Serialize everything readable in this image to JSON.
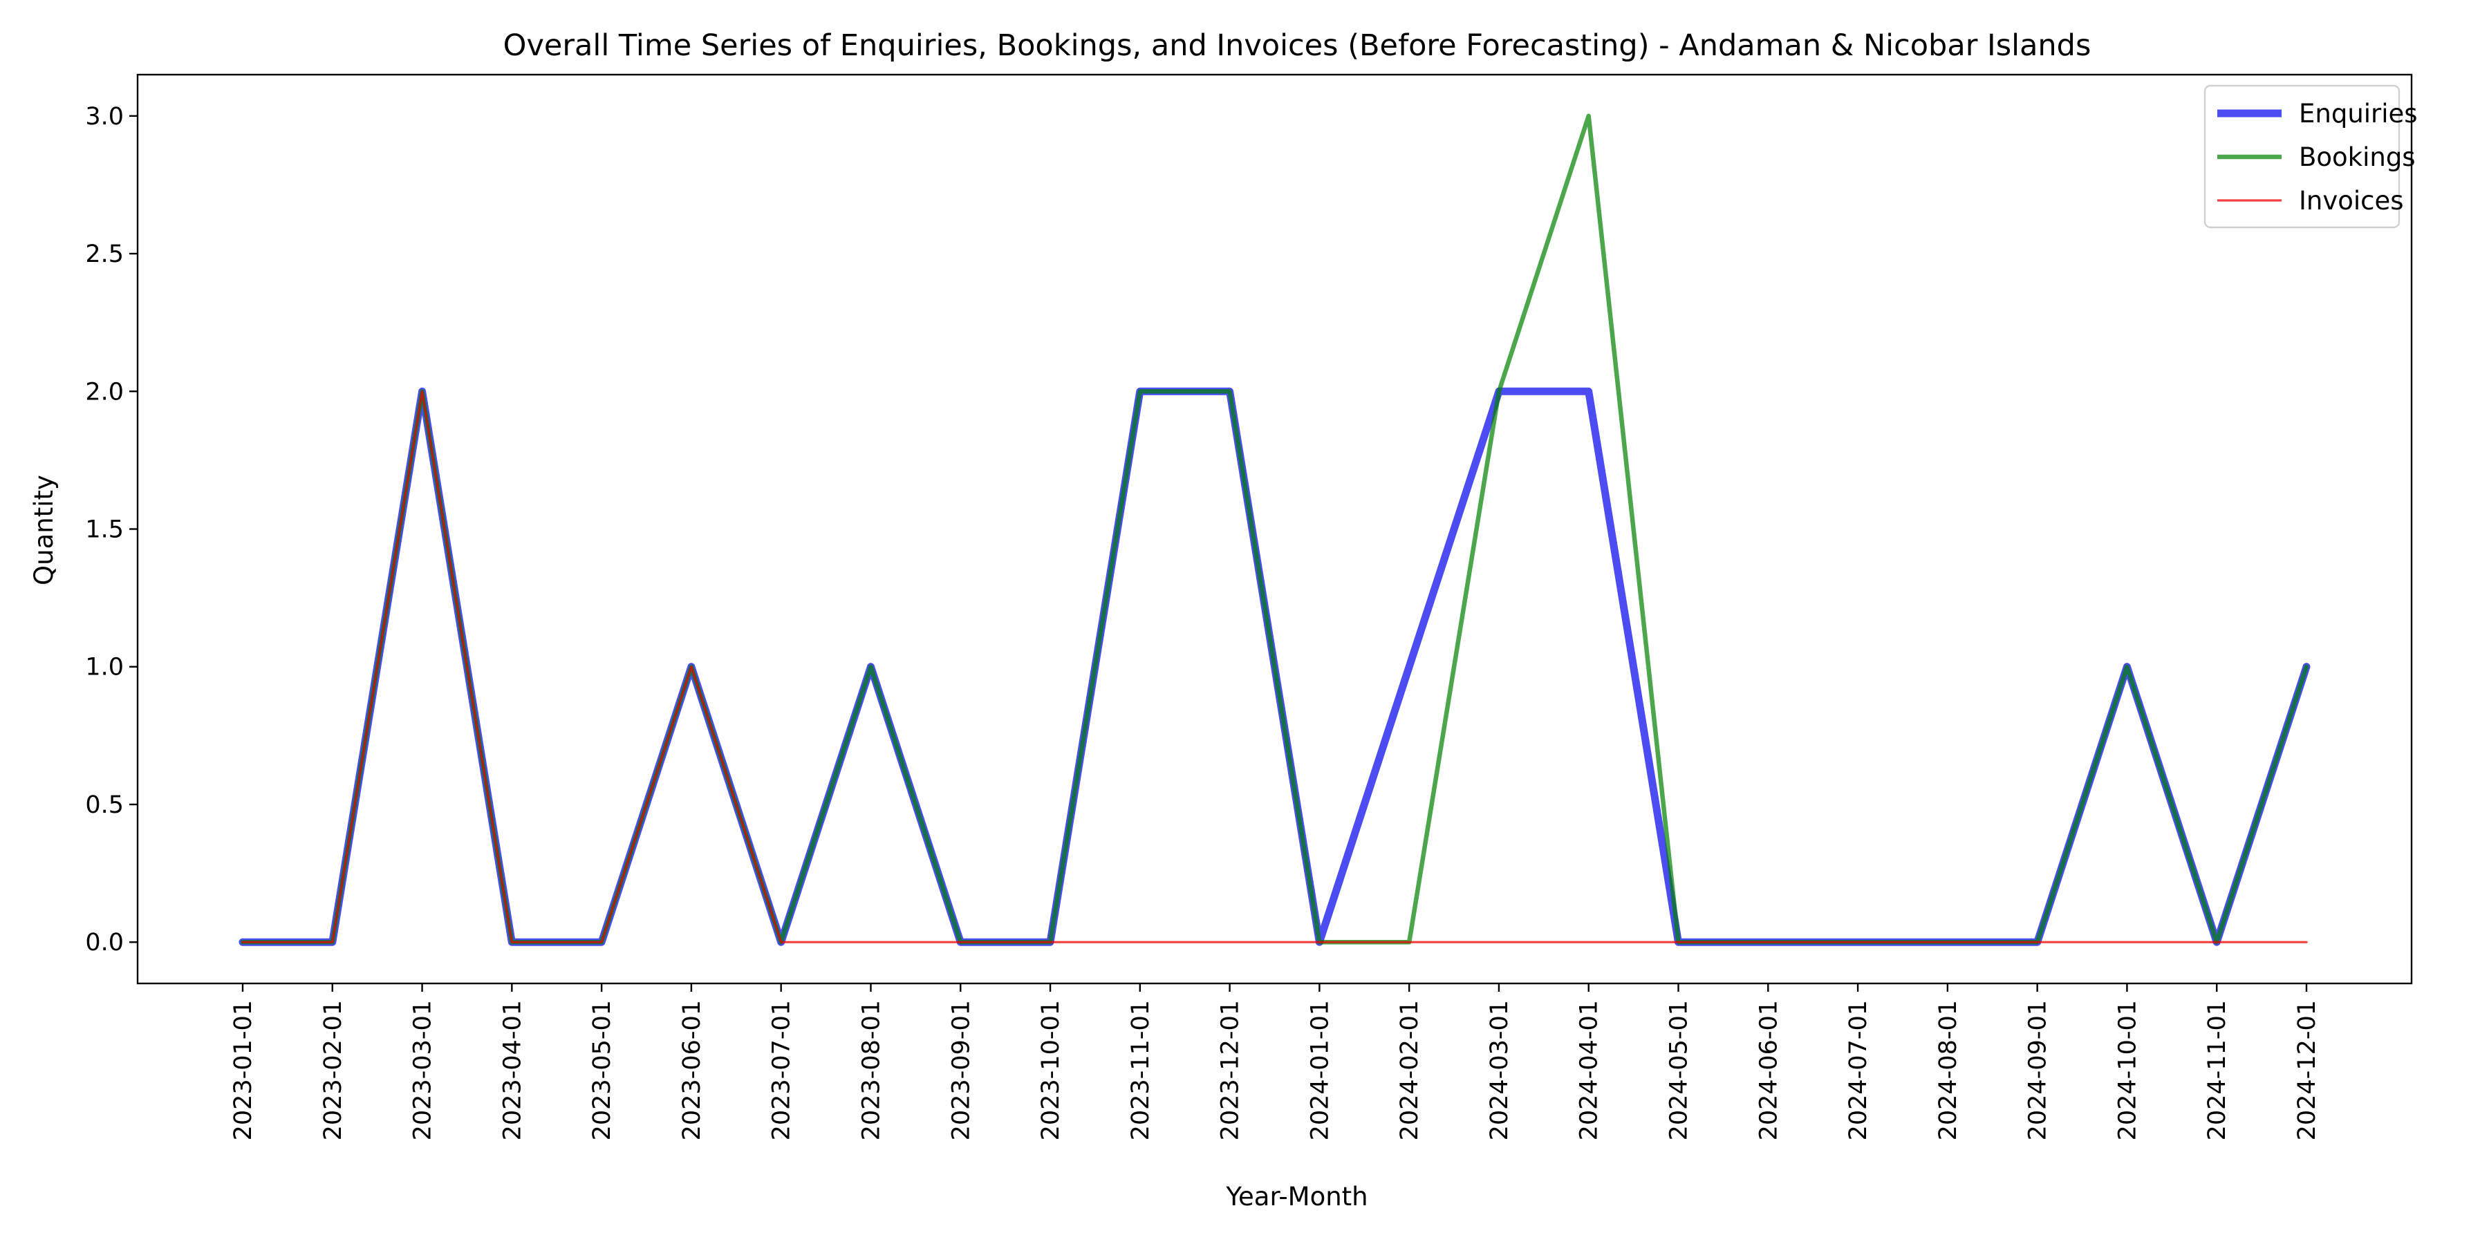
{
  "chart_data": {
    "type": "line",
    "title": "Overall Time Series of Enquiries, Bookings, and Invoices (Before Forecasting) - Andaman & Nicobar Islands",
    "xlabel": "Year-Month",
    "ylabel": "Quantity",
    "ylim": [
      -0.15,
      3.15
    ],
    "yticks": [
      0.0,
      0.5,
      1.0,
      1.5,
      2.0,
      2.5,
      3.0
    ],
    "ytick_labels": [
      "0.0",
      "0.5",
      "1.0",
      "1.5",
      "2.0",
      "2.5",
      "3.0"
    ],
    "grid": false,
    "legend_position": "top-right",
    "x": [
      "2023-01-01",
      "2023-02-01",
      "2023-03-01",
      "2023-04-01",
      "2023-05-01",
      "2023-06-01",
      "2023-07-01",
      "2023-08-01",
      "2023-09-01",
      "2023-10-01",
      "2023-11-01",
      "2023-12-01",
      "2024-01-01",
      "2024-02-01",
      "2024-03-01",
      "2024-04-01",
      "2024-05-01",
      "2024-06-01",
      "2024-07-01",
      "2024-08-01",
      "2024-09-01",
      "2024-10-01",
      "2024-11-01",
      "2024-12-01"
    ],
    "series": [
      {
        "name": "Enquiries",
        "color": "#0000ee",
        "values": [
          0,
          0,
          2,
          0,
          0,
          1,
          0,
          1,
          0,
          0,
          2,
          2,
          0,
          1,
          2,
          2,
          0,
          0,
          0,
          0,
          0,
          1,
          0,
          1
        ]
      },
      {
        "name": "Bookings",
        "color": "#008000",
        "values": [
          0,
          0,
          2,
          0,
          0,
          1,
          0,
          1,
          0,
          0,
          2,
          2,
          0,
          0,
          2,
          3,
          0,
          0,
          0,
          0,
          0,
          1,
          0,
          1
        ]
      },
      {
        "name": "Invoices",
        "color": "#ee0000",
        "values": [
          0,
          0,
          2,
          0,
          0,
          1,
          0,
          0,
          0,
          0,
          0,
          0,
          0,
          0,
          0,
          0,
          0,
          0,
          0,
          0,
          0,
          0,
          0,
          0
        ]
      }
    ]
  }
}
